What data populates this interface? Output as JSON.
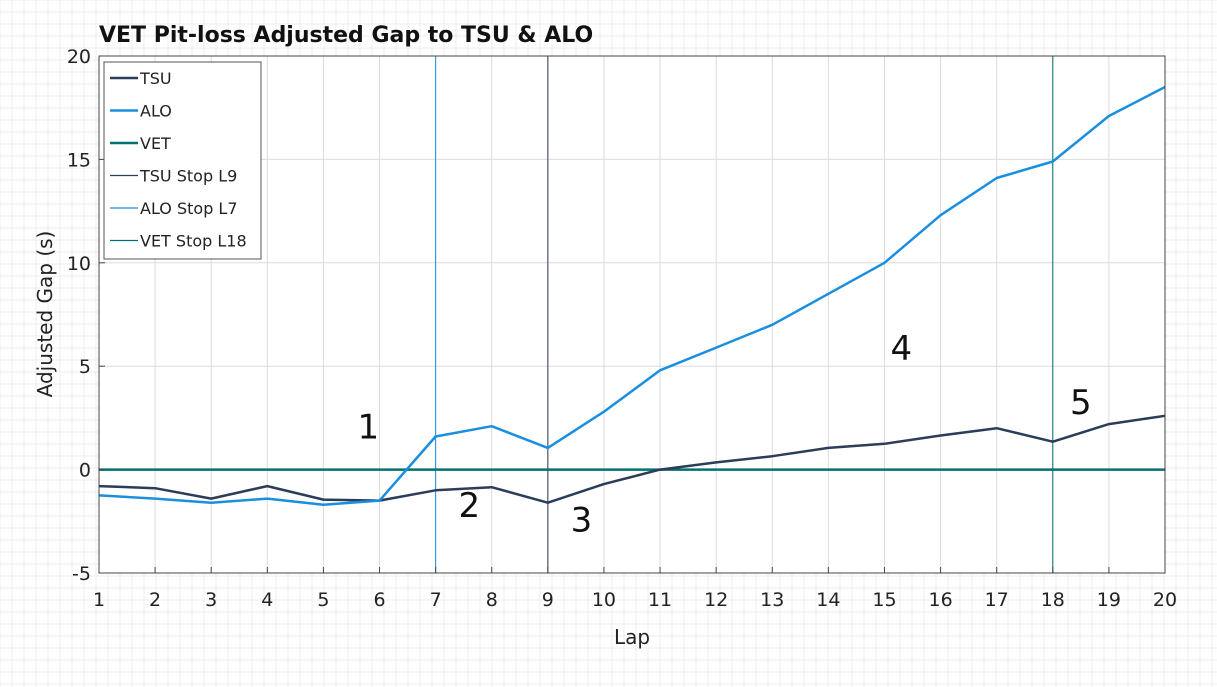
{
  "chart_data": {
    "type": "line",
    "title": "VET Pit-loss Adjusted Gap to TSU & ALO",
    "xlabel": "Lap",
    "ylabel": "Adjusted Gap (s)",
    "x": [
      1,
      2,
      3,
      4,
      5,
      6,
      7,
      8,
      9,
      10,
      11,
      12,
      13,
      14,
      15,
      16,
      17,
      18,
      19,
      20
    ],
    "xlim": [
      1,
      20
    ],
    "ylim": [
      -5,
      20
    ],
    "x_ticks": [
      "1",
      "2",
      "3",
      "4",
      "5",
      "6",
      "7",
      "8",
      "9",
      "10",
      "11",
      "12",
      "13",
      "14",
      "15",
      "16",
      "17",
      "18",
      "19",
      "20"
    ],
    "y_ticks": [
      "-5",
      "0",
      "5",
      "10",
      "15",
      "20"
    ],
    "grid": true,
    "legend_position": "top-left",
    "series": [
      {
        "name": "TSU",
        "color": "#2b3d58",
        "values": [
          -0.8,
          -0.9,
          -1.4,
          -0.8,
          -1.45,
          -1.5,
          -1.0,
          -0.85,
          -1.6,
          -0.7,
          0.0,
          0.35,
          0.65,
          1.05,
          1.25,
          1.65,
          2.0,
          1.35,
          2.2,
          2.6
        ]
      },
      {
        "name": "ALO",
        "color": "#1a8fe0",
        "values": [
          -1.25,
          -1.4,
          -1.6,
          -1.4,
          -1.7,
          -1.5,
          1.6,
          2.1,
          1.05,
          2.8,
          4.8,
          5.9,
          7.0,
          8.5,
          10.0,
          12.3,
          14.1,
          14.9,
          17.1,
          18.5
        ]
      },
      {
        "name": "VET",
        "color": "#007070",
        "values": [
          0,
          0,
          0,
          0,
          0,
          0,
          0,
          0,
          0,
          0,
          0,
          0,
          0,
          0,
          0,
          0,
          0,
          0,
          0,
          0
        ]
      }
    ],
    "vertical_lines": [
      {
        "name": "TSU Stop L9",
        "x": 9,
        "color": "#2b3d58"
      },
      {
        "name": "ALO Stop L7",
        "x": 7,
        "color": "#1a8fe0"
      },
      {
        "name": "VET Stop L18",
        "x": 18,
        "color": "#007070"
      }
    ],
    "annotations": [
      {
        "text": "1",
        "x": 5.8,
        "y": 1.5
      },
      {
        "text": "2",
        "x": 7.6,
        "y": -2.3
      },
      {
        "text": "3",
        "x": 9.6,
        "y": -3.0
      },
      {
        "text": "4",
        "x": 15.3,
        "y": 5.3
      },
      {
        "text": "5",
        "x": 18.5,
        "y": 2.7
      }
    ]
  }
}
